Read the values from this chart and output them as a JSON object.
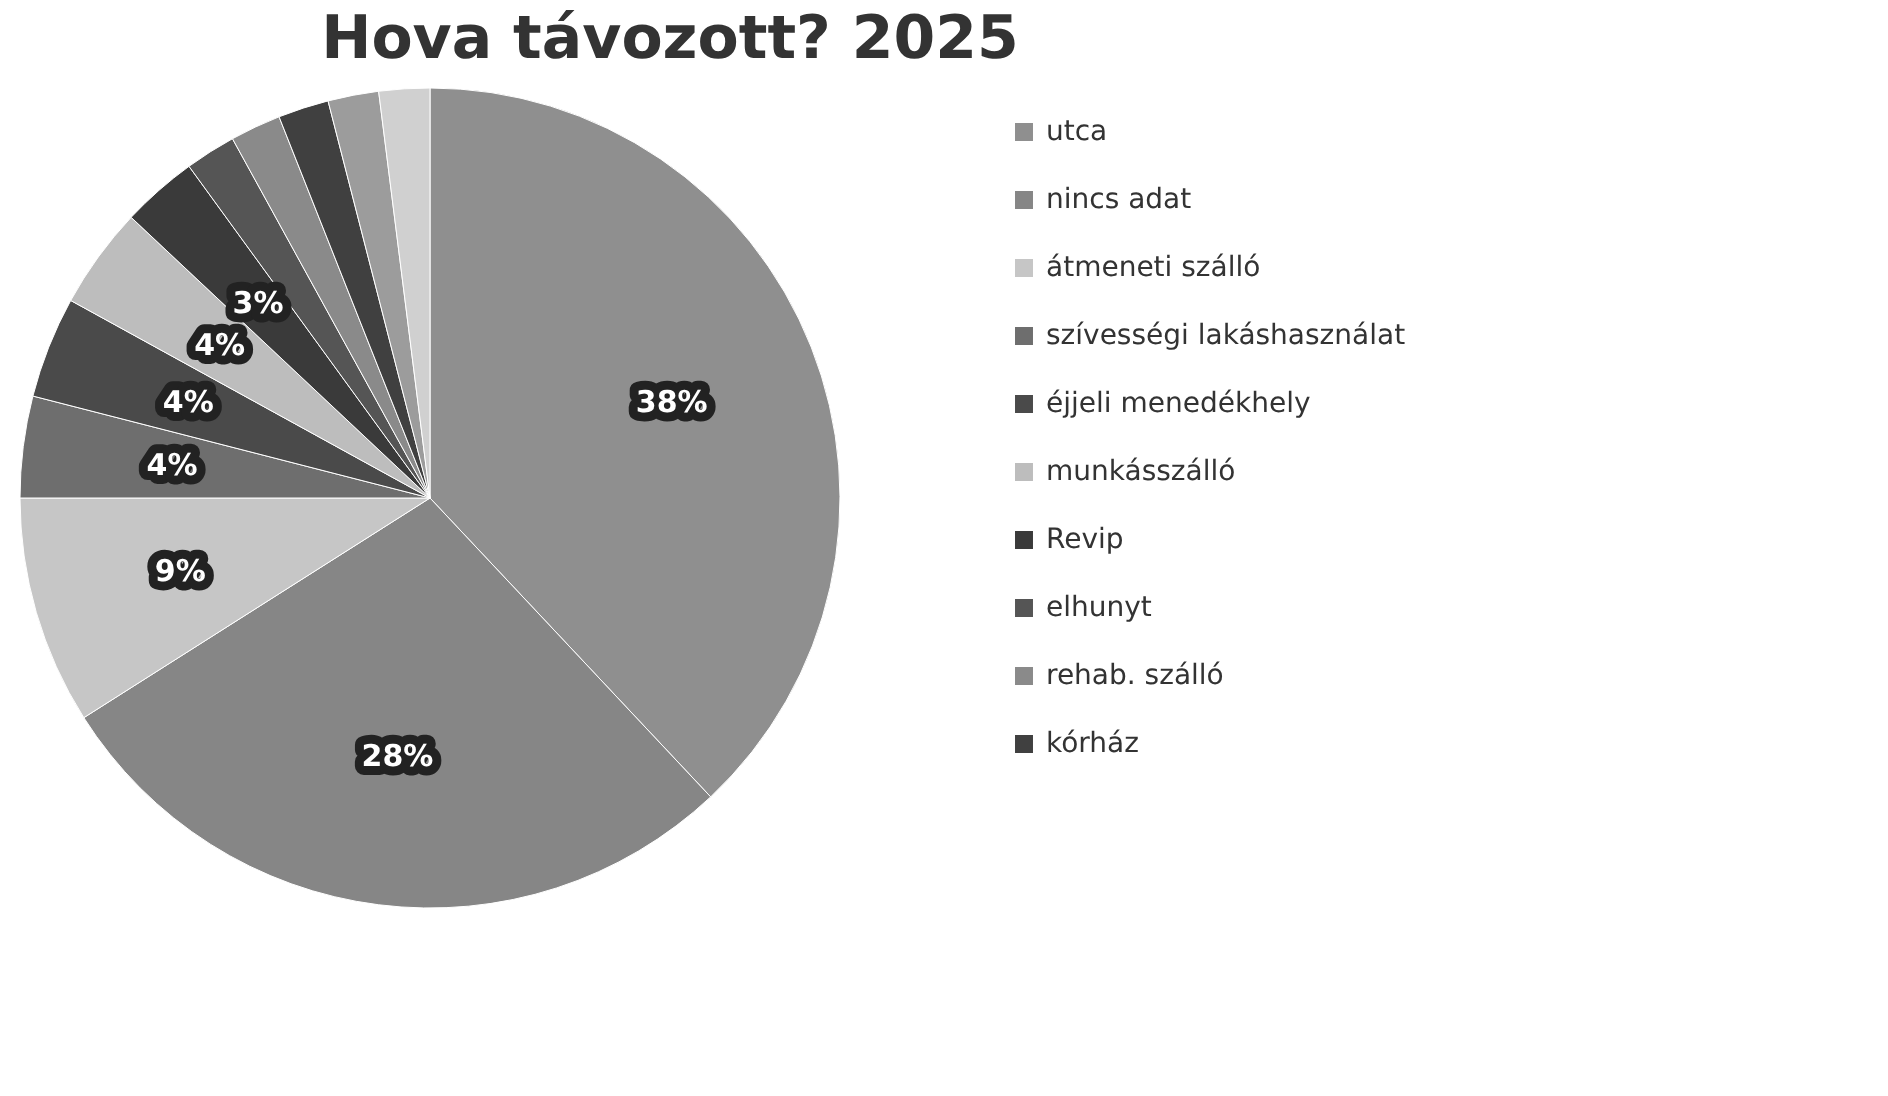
{
  "chart_data": {
    "type": "pie",
    "title": "Hova távozott? 2025",
    "categories": [
      "utca",
      "nincs adat",
      "átmeneti szálló",
      "szívességi lakáshasználat",
      "éjjeli menedékhely",
      "munkásszálló",
      "Revip",
      "elhunyt",
      "rehab. szálló",
      "kórház",
      null,
      null
    ],
    "values": [
      38,
      28,
      9,
      4,
      4,
      4,
      3,
      2,
      2,
      2,
      2,
      2
    ],
    "value_labels": [
      "38%",
      "28%",
      "9%",
      "4%",
      "4%",
      "4%",
      "3%",
      null,
      null,
      null,
      null,
      null
    ],
    "colors": [
      "#8f8f8f",
      "#868686",
      "#c6c6c6",
      "#6e6e6e",
      "#4a4a4a",
      "#bdbdbd",
      "#3a3a3a",
      "#555555",
      "#8a8a8a",
      "#404040",
      "#9c9c9c",
      "#d0d0d0"
    ],
    "legend": "right"
  }
}
